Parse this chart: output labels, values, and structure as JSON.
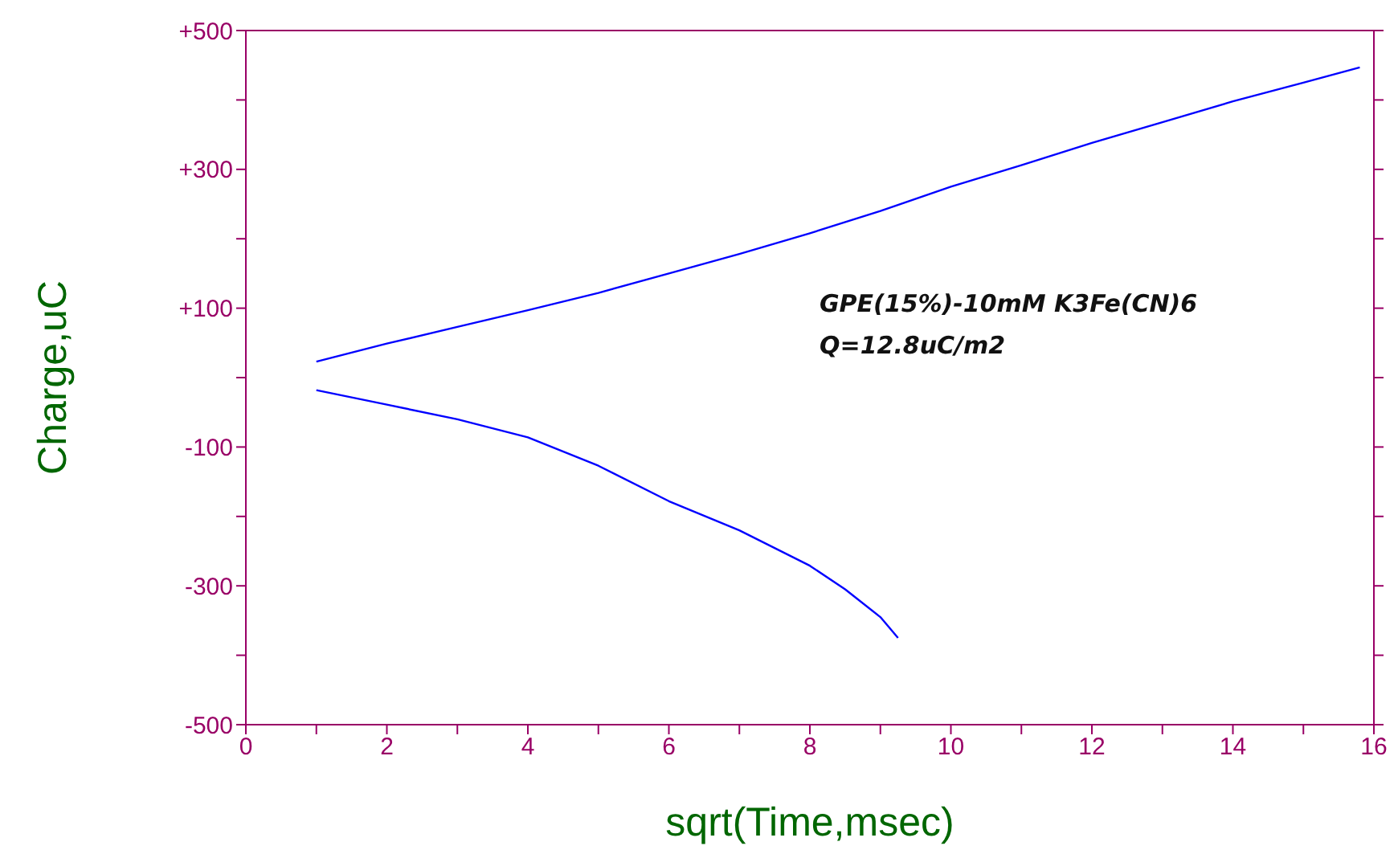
{
  "chart_data": {
    "type": "line",
    "xlabel": "sqrt(Time,msec)",
    "ylabel": "Charge,uC",
    "annotations": [
      "GPE(15%)-10mM K3Fe(CN)6",
      "Q=12.8uC/m2"
    ],
    "xlim": [
      0,
      16
    ],
    "ylim": [
      -500,
      500
    ],
    "xticks": [
      0,
      {
        "value": 1,
        "label": null
      },
      2,
      {
        "value": 3,
        "label": null
      },
      4,
      {
        "value": 5,
        "label": null
      },
      6,
      {
        "value": 7,
        "label": null
      },
      8,
      {
        "value": 9,
        "label": null
      },
      10,
      {
        "value": 11,
        "label": null
      },
      12,
      {
        "value": 13,
        "label": null
      },
      14,
      {
        "value": 15,
        "label": null
      },
      16
    ],
    "yticks": [
      {
        "value": -500,
        "label": "-500"
      },
      {
        "value": -400,
        "label": null
      },
      {
        "value": -300,
        "label": "-300"
      },
      {
        "value": -200,
        "label": null
      },
      {
        "value": -100,
        "label": "-100"
      },
      {
        "value": 0,
        "label": null
      },
      {
        "value": 100,
        "label": "+100"
      },
      {
        "value": 200,
        "label": null
      },
      {
        "value": 300,
        "label": "+300"
      },
      {
        "value": 400,
        "label": null
      },
      {
        "value": 500,
        "label": "+500"
      }
    ],
    "grid": false,
    "legend": false,
    "marker": "none",
    "line_style": "solid",
    "series": [
      {
        "color": "#0000ff",
        "x": [
          1,
          2,
          3,
          4,
          5,
          6,
          7,
          8,
          9,
          10,
          11,
          12,
          13,
          14,
          15,
          15.8
        ],
        "values": [
          23,
          49,
          73,
          97,
          122,
          150,
          178,
          208,
          240,
          275,
          306,
          338,
          368,
          398,
          425,
          447
        ]
      },
      {
        "color": "#0000ff",
        "x": [
          1,
          2,
          3,
          4,
          5,
          6,
          7,
          8,
          8.5,
          9,
          9.25
        ],
        "values": [
          -18,
          -39,
          -60,
          -86,
          -127,
          -178,
          -220,
          -271,
          -305,
          -345,
          -375
        ]
      }
    ]
  }
}
